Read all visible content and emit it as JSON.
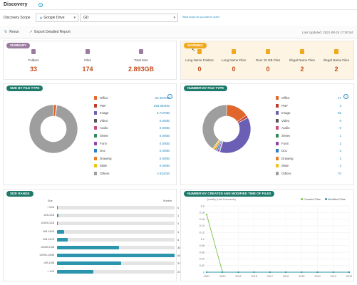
{
  "header": {
    "title": "Discovery",
    "info_icon": "info-icon"
  },
  "scope": {
    "label": "Discovery Scope",
    "source_value": "Google Drive",
    "target_value": "GD",
    "link_text": "What scope do you want to scan?"
  },
  "toolbar": {
    "rerun_label": "Rerun",
    "export_label": "Export Detailed Report",
    "last_updated": "Last Updated: 2021-08-24 17:00:54"
  },
  "summary": {
    "title": "SUMMARY",
    "items": [
      {
        "label": "Folders",
        "value": "33",
        "icon": "folder-icon",
        "color": "#9b7b9f"
      },
      {
        "label": "Files",
        "value": "174",
        "icon": "file-icon",
        "color": "#9b7b9f"
      },
      {
        "label": "Total Size",
        "value": "2.893GB",
        "icon": "database-icon",
        "color": "#9b7b9f"
      }
    ]
  },
  "warning": {
    "title": "WARNING",
    "items": [
      {
        "label": "Long Name Folders",
        "value": "0",
        "icon": "folder-warning-icon"
      },
      {
        "label": "Long Name Files",
        "value": "0",
        "icon": "file-warning-icon"
      },
      {
        "label": "Over 15 GB Files",
        "value": "0",
        "icon": "large-file-icon"
      },
      {
        "label": "Illegal Name Files",
        "value": "2",
        "icon": "illegal-file-icon"
      },
      {
        "label": "Illegal Name Files",
        "value": "2",
        "icon": "illegal-file-icon"
      }
    ]
  },
  "size_by_type": {
    "title": "SIZE BY FILE TYPE",
    "items": [
      {
        "name": "Office",
        "value": "63.397MB",
        "color": "#e0662b"
      },
      {
        "name": "PDF",
        "value": "645.684KB",
        "color": "#c0392b"
      },
      {
        "name": "Image",
        "value": "6.727MB",
        "color": "#6b5fb5"
      },
      {
        "name": "Video",
        "value": "0.000B",
        "color": "#555555"
      },
      {
        "name": "Audio",
        "value": "0.000B",
        "color": "#d04a7a"
      },
      {
        "name": "Sheet",
        "value": "0.000B",
        "color": "#2e8b57"
      },
      {
        "name": "Form",
        "value": "0.000B",
        "color": "#8e44ad"
      },
      {
        "name": "Doc",
        "value": "0.000B",
        "color": "#2a7fc4"
      },
      {
        "name": "Drawing",
        "value": "0.000B",
        "color": "#e67e22"
      },
      {
        "name": "Slide",
        "value": "0.000B",
        "color": "#f1c40f"
      },
      {
        "name": "Others",
        "value": "2.824GB",
        "color": "#9e9e9e"
      }
    ]
  },
  "number_by_type": {
    "title": "NUMBER BY FILE TYPE",
    "items": [
      {
        "name": "Office",
        "value": "27",
        "color": "#e0662b"
      },
      {
        "name": "PDF",
        "value": "3",
        "color": "#c0392b"
      },
      {
        "name": "Image",
        "value": "65",
        "color": "#6b5fb5"
      },
      {
        "name": "Video",
        "value": "0",
        "color": "#555555"
      },
      {
        "name": "Audio",
        "value": "0",
        "color": "#d04a7a"
      },
      {
        "name": "Sheet",
        "value": "1",
        "color": "#2e8b57"
      },
      {
        "name": "Form",
        "value": "2",
        "color": "#8e44ad"
      },
      {
        "name": "Doc",
        "value": "2",
        "color": "#2a7fc4"
      },
      {
        "name": "Drawing",
        "value": "2",
        "color": "#e67e22"
      },
      {
        "name": "Slide",
        "value": "2",
        "color": "#f1c40f"
      },
      {
        "name": "Others",
        "value": "70",
        "color": "#9e9e9e"
      }
    ]
  },
  "size_range": {
    "title": "SIZE RANGE",
    "col_size": "Size",
    "col_number": "Number",
    "rows": [
      {
        "label": "< 0KB",
        "value": 0
      },
      {
        "label": "1KB-1GB",
        "value": 1
      },
      {
        "label": "100KB-1GB",
        "value": 0
      },
      {
        "label": "1KB-10KB",
        "value": 4
      },
      {
        "label": "1KB-10KB",
        "value": 6
      },
      {
        "label": "100KB-1MB",
        "value": 36
      },
      {
        "label": "100KB-10MB",
        "value": 68
      },
      {
        "label": "1KB-1MB",
        "value": 37
      },
      {
        "label": "> 1KB",
        "value": 21
      }
    ],
    "max": 68
  },
  "created_modified": {
    "title": "NUMBER BY CREATED AND MODIFIED TIME OF FILES",
    "unit_label": "Quantity (Unit:Thousands)",
    "legend_created": "Created Files",
    "legend_modified": "Modified Files",
    "created_color": "#7cc242",
    "modified_color": "#2a95ad"
  },
  "chart_data": [
    {
      "type": "pie",
      "title": "SIZE BY FILE TYPE",
      "categories": [
        "Office",
        "PDF",
        "Image",
        "Others"
      ],
      "values": [
        63.397,
        0.646,
        6.727,
        2891.8
      ],
      "colors": [
        "#e0662b",
        "#c0392b",
        "#6b5fb5",
        "#9e9e9e"
      ]
    },
    {
      "type": "pie",
      "title": "NUMBER BY FILE TYPE",
      "categories": [
        "Office",
        "PDF",
        "Image",
        "Sheet",
        "Form",
        "Doc",
        "Drawing",
        "Slide",
        "Others"
      ],
      "values": [
        27,
        3,
        65,
        1,
        2,
        2,
        2,
        2,
        70
      ],
      "colors": [
        "#e0662b",
        "#c0392b",
        "#6b5fb5",
        "#2e8b57",
        "#8e44ad",
        "#2a7fc4",
        "#e67e22",
        "#f1c40f",
        "#9e9e9e"
      ]
    },
    {
      "type": "bar",
      "title": "SIZE RANGE",
      "categories": [
        "< 0KB",
        "1KB-1GB",
        "100KB-1GB",
        "1KB-10KB",
        "1KB-10KB",
        "100KB-1MB",
        "100KB-10MB",
        "1KB-1MB",
        "> 1KB"
      ],
      "values": [
        0,
        1,
        0,
        4,
        6,
        36,
        68,
        37,
        21
      ]
    },
    {
      "type": "line",
      "title": "NUMBER BY CREATED AND MODIFIED TIME OF FILES",
      "ylabel": "Quantity (Unit:Thousands)",
      "x": [
        "2021",
        "2020",
        "2019",
        "2018",
        "2017",
        "2016",
        "2015",
        "2014",
        "2013",
        "2012"
      ],
      "ylim": [
        0,
        0.2
      ],
      "yticks": [
        "0",
        "0.02",
        "0.04",
        "0.06",
        "0.08",
        "0.1",
        "0.12",
        "0.14",
        "0.16",
        "0.18",
        "0.2"
      ],
      "series": [
        {
          "name": "Created Files",
          "values": [
            0.174,
            0,
            0,
            0,
            0,
            0,
            0,
            0,
            0,
            0
          ]
        },
        {
          "name": "Modified Files",
          "values": [
            0,
            0,
            0,
            0,
            0,
            0,
            0,
            0,
            0,
            0
          ]
        }
      ]
    }
  ]
}
